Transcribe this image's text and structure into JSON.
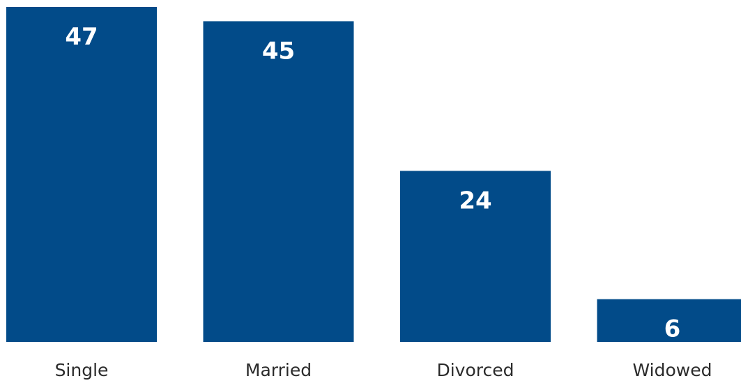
{
  "chart_data": {
    "type": "bar",
    "categories": [
      "Single",
      "Married",
      "Divorced",
      "Widowed"
    ],
    "values": [
      47,
      45,
      24,
      6
    ],
    "data_labels": [
      "47",
      "45",
      "24",
      "6"
    ],
    "title": "",
    "xlabel": "",
    "ylabel": "",
    "ylim": [
      0,
      47
    ],
    "grid": false,
    "legend": "none",
    "colors": {
      "bar": "#024b89",
      "value_label": "#ffffff",
      "category_label": "#2b2b2b",
      "background": "#ffffff"
    }
  }
}
